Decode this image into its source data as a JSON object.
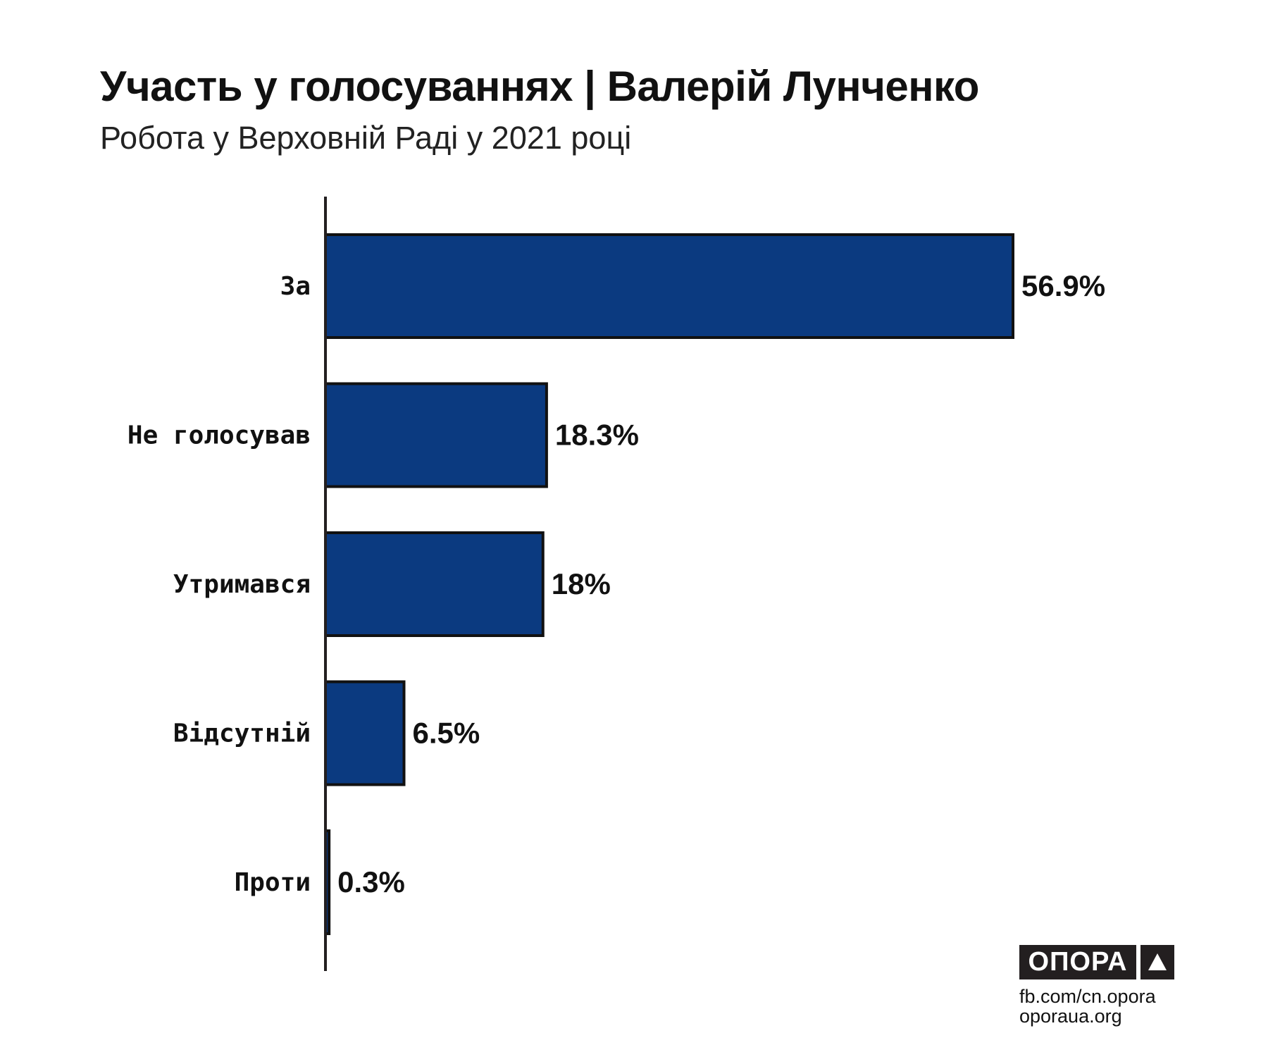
{
  "chart_data": {
    "type": "bar",
    "orientation": "horizontal",
    "title": "Участь у голосуваннях | Валерій Лунченко",
    "subtitle": "Робота у Верховній Раді у 2021 році",
    "categories": [
      "За",
      "Не голосував",
      "Утримався",
      "Відсутній",
      "Проти"
    ],
    "values": [
      56.9,
      18.3,
      18,
      6.5,
      0.3
    ],
    "value_labels": [
      "56.9%",
      "18.3%",
      "18%",
      "6.5%",
      "0.3%"
    ],
    "xlabel": "",
    "ylabel": "",
    "xlim": [
      0,
      56.9
    ],
    "grid": false,
    "legend": "none",
    "bar_color": "#0b3a80",
    "bar_outline": "#111111"
  },
  "branding": {
    "logo_text": "ОПОРА",
    "links": [
      "fb.com/cn.opora",
      "oporaua.org"
    ]
  }
}
